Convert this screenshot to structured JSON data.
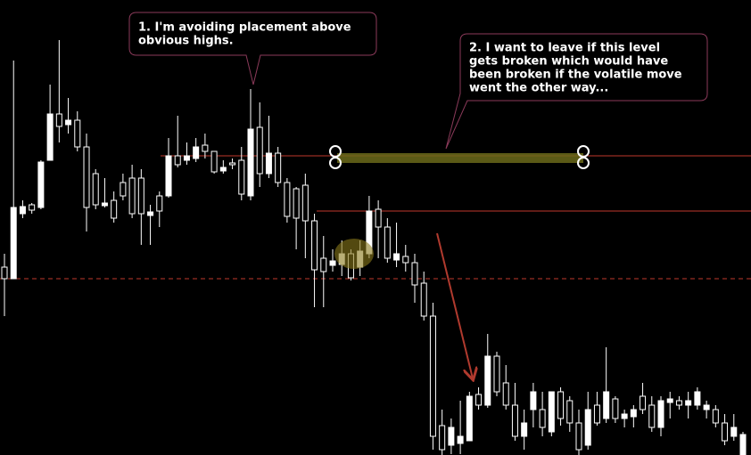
{
  "chart_data": {
    "type": "candlestick",
    "open": [
      21.1,
      19.8,
      27.1,
      28.1,
      27.8,
      33.1,
      38.3,
      37.1,
      37.6,
      34.6,
      31.6,
      28.0,
      28.6,
      30.6,
      31.1,
      31.1,
      26.9,
      29.1,
      29.1,
      33.6,
      33.1,
      33.3,
      34.8,
      34.1,
      31.9,
      32.8,
      33.1,
      29.1,
      36.8,
      31.6,
      33.9,
      30.6,
      29.9,
      30.3,
      26.3,
      22.1,
      21.3,
      21.4,
      22.6,
      21.1,
      22.6,
      27.6,
      25.6,
      21.9,
      22.3,
      21.6,
      19.3,
      15.6,
      3.3,
      1.1,
      1.3,
      1.6,
      6.8,
      5.6,
      11.1,
      8.1,
      5.6,
      2.1,
      5.1,
      5.1,
      2.6,
      7.1,
      6.1,
      3.6,
      1.1,
      5.6,
      4.1,
      6.3,
      4.1,
      4.3,
      6.6,
      5.6,
      3.1,
      5.9,
      6.1,
      5.6,
      5.6,
      5.1,
      5.1,
      3.6,
      2.1,
      0
    ],
    "high": [
      22.6,
      44.3,
      28.6,
      28.3,
      33.1,
      41.6,
      46.6,
      40.1,
      38.6,
      36.1,
      32.1,
      31.1,
      29.6,
      31.6,
      32.6,
      32.1,
      28.1,
      29.6,
      35.6,
      38.1,
      35.1,
      35.6,
      36.1,
      34.1,
      33.1,
      33.3,
      34.6,
      41.1,
      39.6,
      38.1,
      34.6,
      31.1,
      30.1,
      31.6,
      27.1,
      24.6,
      23.1,
      24.1,
      23.1,
      24.1,
      29.1,
      28.6,
      26.6,
      26.1,
      23.6,
      22.6,
      20.6,
      17.1,
      5.1,
      4.1,
      6.1,
      7.1,
      7.6,
      13.6,
      11.6,
      10.1,
      8.1,
      5.1,
      8.1,
      7.1,
      7.1,
      7.6,
      6.6,
      5.1,
      7.1,
      7.1,
      12.1,
      6.6,
      5.1,
      5.6,
      8.1,
      6.6,
      6.6,
      7.1,
      6.6,
      7.1,
      7.6,
      6.1,
      5.6,
      4.6,
      4.6,
      2.6
    ],
    "low": [
      15.6,
      19.8,
      26.6,
      27.1,
      27.6,
      33.1,
      35.1,
      36.1,
      34.1,
      25.1,
      27.6,
      27.8,
      26.1,
      28.6,
      26.6,
      23.6,
      23.6,
      25.6,
      28.9,
      32.3,
      32.6,
      32.9,
      33.3,
      31.6,
      31.6,
      32.1,
      28.6,
      28.6,
      30.1,
      31.1,
      30.1,
      26.1,
      23.1,
      22.1,
      16.6,
      16.6,
      20.6,
      20.1,
      19.6,
      20.1,
      22.1,
      22.1,
      21.6,
      21.1,
      20.6,
      17.1,
      15.1,
      0.6,
      0,
      0.1,
      0.1,
      1.6,
      5.1,
      5.3,
      6.6,
      5.1,
      1.6,
      0.6,
      3.1,
      2.1,
      2.1,
      3.3,
      2.6,
      0,
      0.6,
      3.3,
      3.6,
      3.6,
      3.1,
      3.1,
      4.6,
      2.6,
      2.1,
      4.1,
      5.1,
      4.1,
      5.1,
      4.1,
      3.1,
      1.1,
      1.6,
      0
    ],
    "close": [
      19.8,
      27.8,
      27.9,
      27.5,
      32.9,
      38.3,
      36.9,
      37.6,
      34.6,
      27.8,
      28.1,
      28.3,
      26.6,
      29.1,
      27.1,
      27.1,
      27.3,
      27.4,
      33.6,
      32.6,
      33.6,
      34.6,
      34.1,
      31.8,
      32.3,
      32.6,
      29.3,
      36.6,
      31.6,
      33.9,
      30.6,
      26.8,
      26.6,
      26.3,
      20.8,
      20.6,
      21.8,
      22.6,
      19.9,
      22.9,
      27.4,
      25.6,
      22.1,
      22.6,
      21.6,
      19.1,
      15.6,
      2.1,
      0.6,
      3.1,
      2.1,
      6.6,
      5.6,
      11.1,
      7.1,
      5.6,
      2.1,
      3.6,
      7.1,
      3.1,
      7.1,
      4.1,
      3.6,
      0.6,
      5.1,
      3.6,
      7.1,
      4.1,
      4.6,
      5.1,
      5.1,
      3.1,
      6.1,
      6.3,
      5.6,
      6.1,
      7.1,
      5.6,
      3.6,
      1.6,
      3.1,
      2.3
    ],
    "ylim": [
      0,
      51.1
    ],
    "levels": [
      33.6,
      27.4,
      19.8
    ],
    "annotations": [
      {
        "lines": [
          "1. I'm avoiding placement above",
          "obvious highs."
        ]
      },
      {
        "lines": [
          "2. I want to leave if this level",
          "gets broken which would have",
          "been broken if the volatile move",
          "went the other way..."
        ]
      }
    ]
  }
}
